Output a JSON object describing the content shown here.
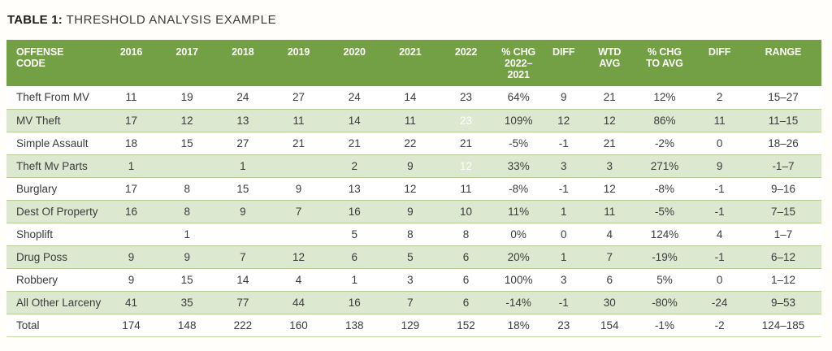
{
  "title": {
    "prefix": "TABLE 1:",
    "text": "THRESHOLD ANALYSIS EXAMPLE"
  },
  "colors": {
    "header_green": "#74a045",
    "row_stripe_green": "#dde8d0",
    "highlight_dark_gray": "#7f7f7f",
    "highlight_light_gray": "#cdcdc9",
    "row_border_green": "#b6cd96"
  },
  "table": {
    "headers": [
      "OFFENSE\nCODE",
      "2016",
      "2017",
      "2018",
      "2019",
      "2020",
      "2021",
      "2022",
      "% CHG\n2022–\n2021",
      "DIFF",
      "WTD\nAVG",
      "% CHG\nTO AVG",
      "DIFF",
      "RANGE"
    ],
    "rows": [
      {
        "cells": [
          "Theft From MV",
          "11",
          "19",
          "24",
          "27",
          "24",
          "14",
          "23",
          "64%",
          "9",
          "21",
          "12%",
          "2",
          "15–27"
        ]
      },
      {
        "cells": [
          "MV Theft",
          "17",
          "12",
          "13",
          "11",
          "14",
          "11",
          "23",
          "109%",
          "12",
          "12",
          "86%",
          "11",
          "11–15"
        ]
      },
      {
        "cells": [
          "Simple Assault",
          "18",
          "15",
          "27",
          "21",
          "21",
          "22",
          "21",
          "-5%",
          "-1",
          "21",
          "-2%",
          "0",
          "18–26"
        ]
      },
      {
        "cells": [
          "Theft Mv Parts",
          "1",
          "",
          "1",
          "",
          "2",
          "9",
          "12",
          "33%",
          "3",
          "3",
          "271%",
          "9",
          "-1–7"
        ]
      },
      {
        "cells": [
          "Burglary",
          "17",
          "8",
          "15",
          "9",
          "13",
          "12",
          "11",
          "-8%",
          "-1",
          "12",
          "-8%",
          "-1",
          "9–16"
        ]
      },
      {
        "cells": [
          "Dest Of Property",
          "16",
          "8",
          "9",
          "7",
          "16",
          "9",
          "10",
          "11%",
          "1",
          "11",
          "-5%",
          "-1",
          "7–15"
        ]
      },
      {
        "cells": [
          "Shoplift",
          "",
          "1",
          "",
          "",
          "5",
          "8",
          "8",
          "0%",
          "0",
          "4",
          "124%",
          "4",
          "1–7"
        ]
      },
      {
        "cells": [
          "Drug Poss",
          "9",
          "9",
          "7",
          "12",
          "6",
          "5",
          "6",
          "20%",
          "1",
          "7",
          "-19%",
          "-1",
          "6–12"
        ]
      },
      {
        "cells": [
          "Robbery",
          "9",
          "15",
          "14",
          "4",
          "1",
          "3",
          "6",
          "100%",
          "3",
          "6",
          "5%",
          "0",
          "1–12"
        ]
      },
      {
        "cells": [
          "All Other Larceny",
          "41",
          "35",
          "77",
          "44",
          "16",
          "7",
          "6",
          "-14%",
          "-1",
          "30",
          "-80%",
          "-24",
          "9–53"
        ]
      },
      {
        "cells": [
          "Total",
          "174",
          "148",
          "222",
          "160",
          "138",
          "129",
          "152",
          "18%",
          "23",
          "154",
          "-1%",
          "-2",
          "124–185"
        ]
      }
    ],
    "highlights": [
      {
        "row": 1,
        "col": 7,
        "type": "dark"
      },
      {
        "row": 3,
        "col": 7,
        "type": "dark"
      },
      {
        "row": 9,
        "col": 7,
        "type": "light"
      }
    ]
  }
}
